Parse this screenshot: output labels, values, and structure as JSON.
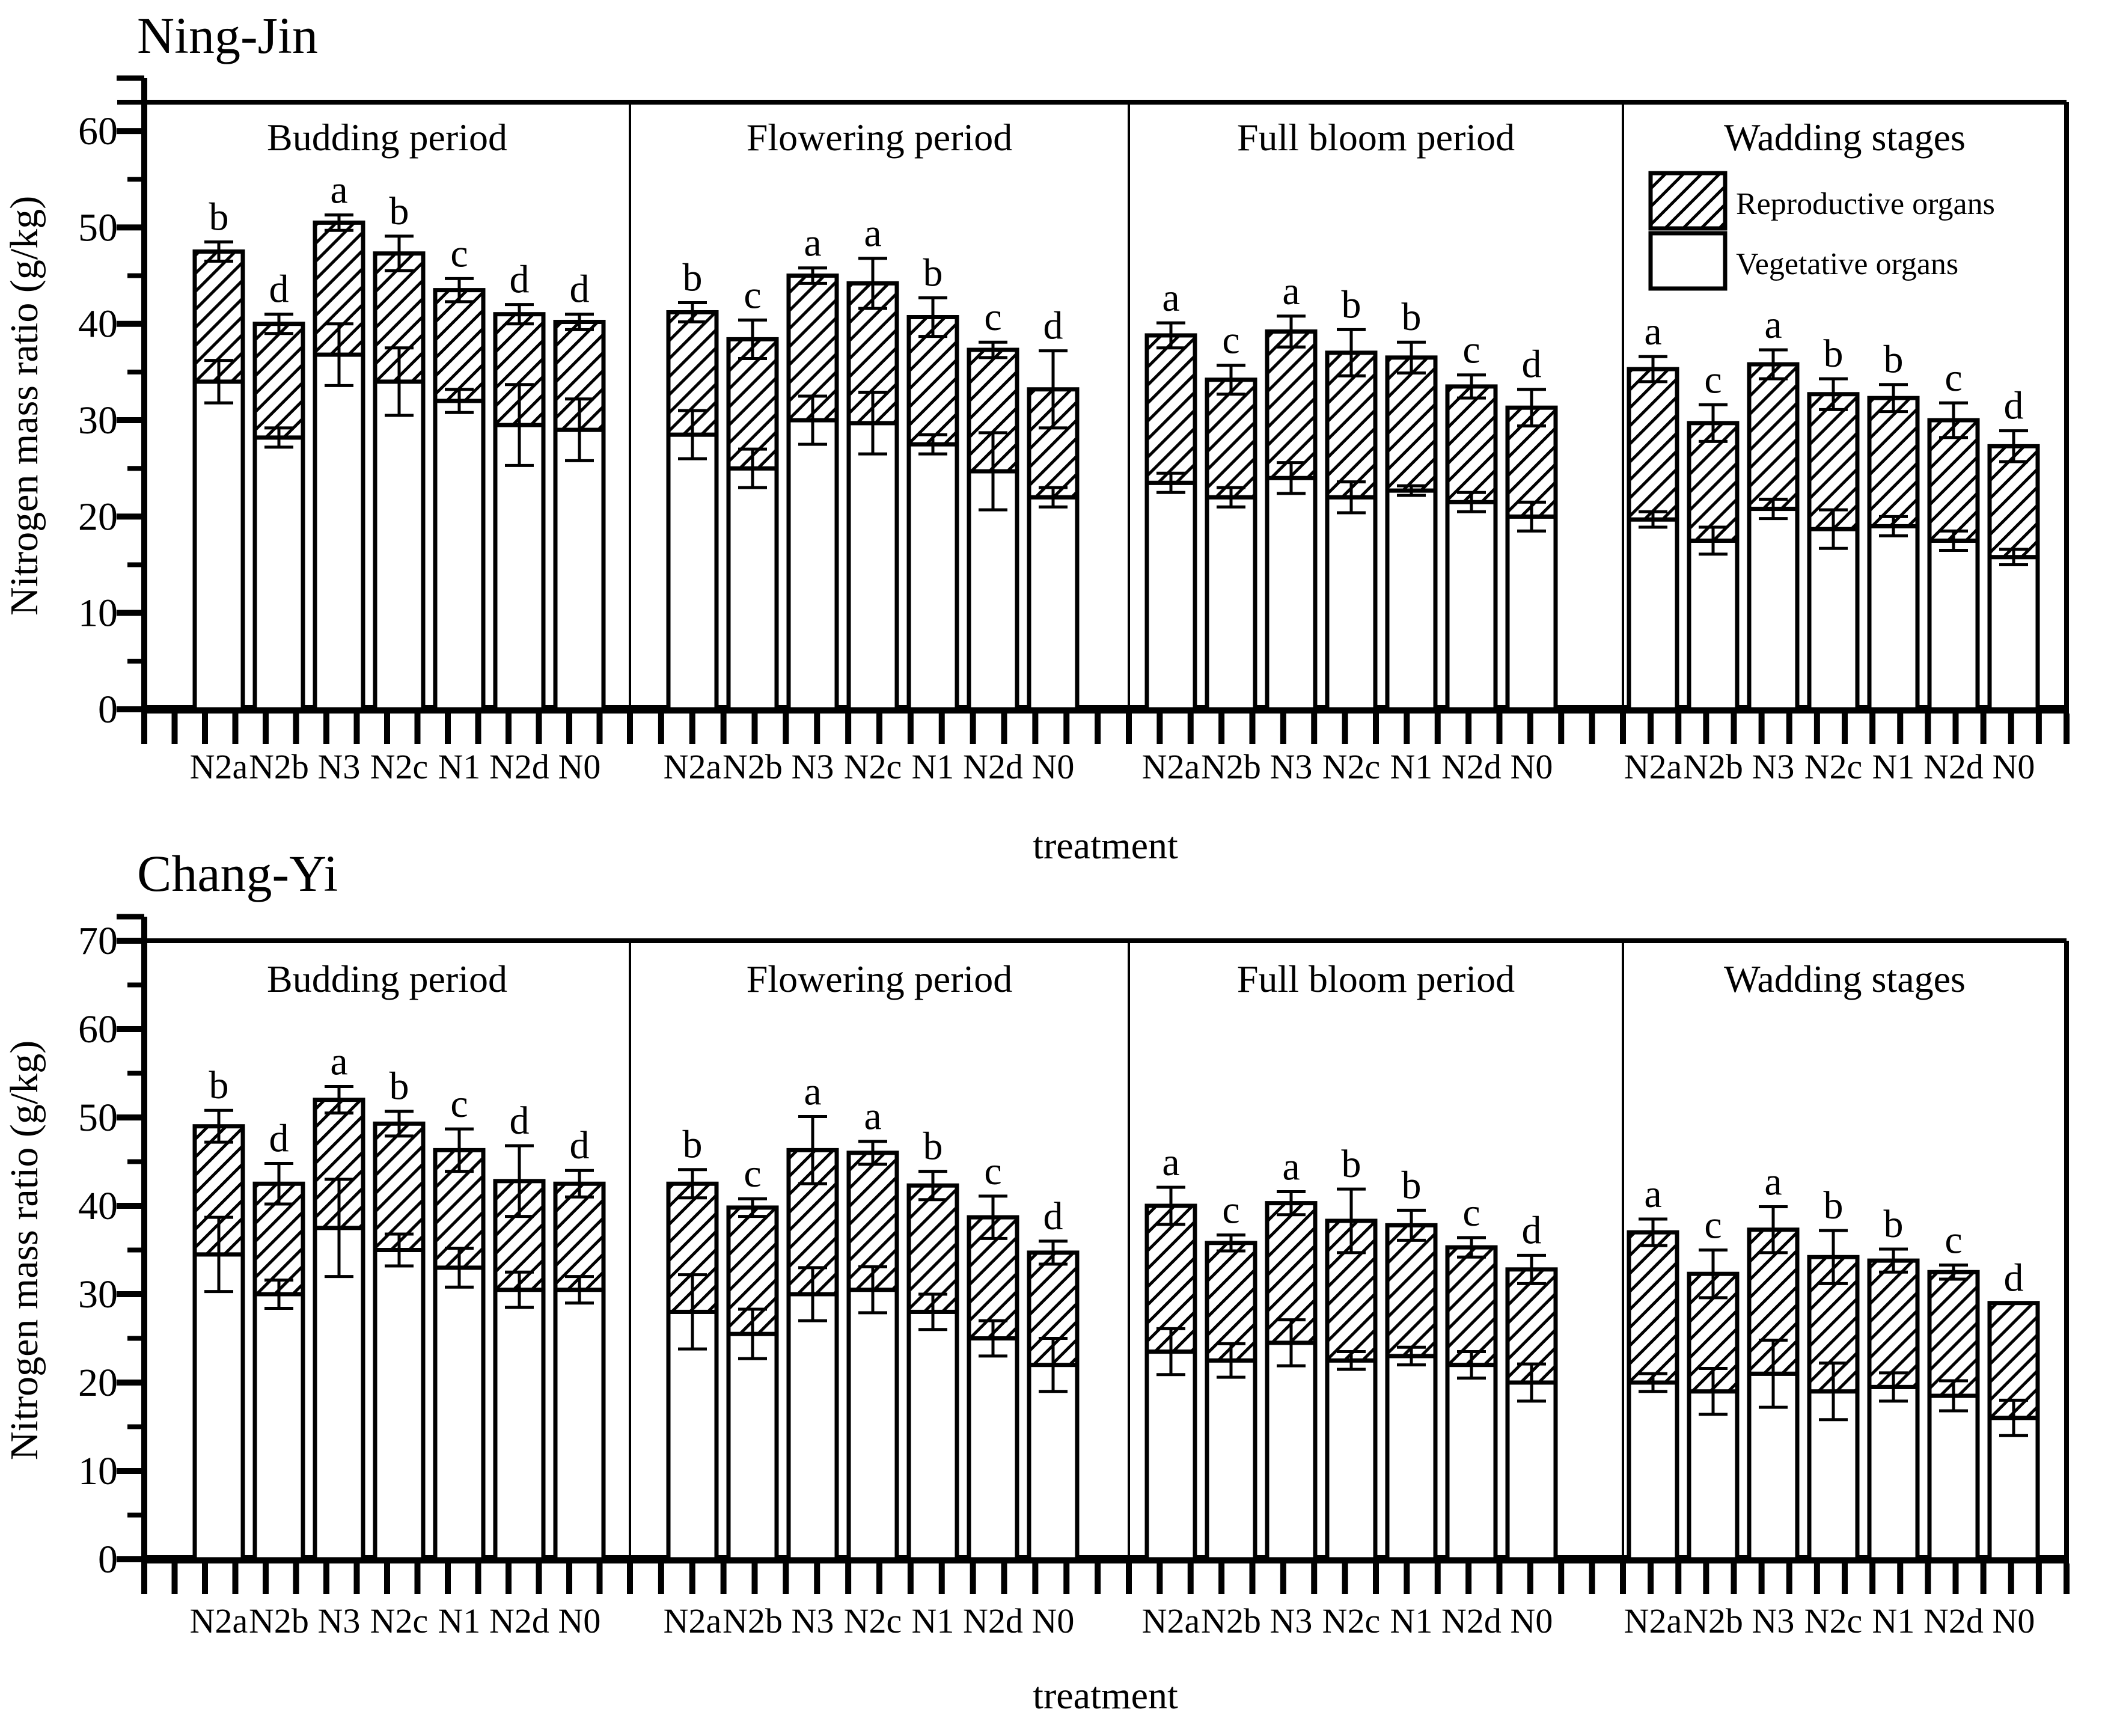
{
  "colors": {
    "ink": "#000000",
    "paper": "#ffffff"
  },
  "legend": {
    "items": [
      {
        "label": "Reproductive organs",
        "swatch": "hatched"
      },
      {
        "label": "Vegetative organs",
        "swatch": "plain"
      }
    ]
  },
  "chart_data": [
    {
      "type": "bar",
      "stacked": true,
      "title": "Ning-Jin",
      "ylabel": "Nitrogen mass ratio (g/kg)",
      "xlabel": "treatment",
      "ylim": [
        0,
        63
      ],
      "yticks": [
        0,
        10,
        20,
        30,
        40,
        50,
        60
      ],
      "minor_step": 5,
      "grid": false,
      "legend_position": "top-right-inside",
      "categories": [
        "N2a",
        "N2b",
        "N3",
        "N2c",
        "N1",
        "N2d",
        "N0"
      ],
      "series_note": "total = Vegetative organs + Reproductive organs; sig = significance letter above bar",
      "groups": [
        {
          "label": "Budding period",
          "bars": [
            {
              "treatment": "N2a",
              "vegetative": 34.0,
              "total": 47.5,
              "err_total": 1.0,
              "err_veg": 2.2,
              "sig": "b"
            },
            {
              "treatment": "N2b",
              "vegetative": 28.2,
              "total": 40.0,
              "err_total": 1.0,
              "err_veg": 1.0,
              "sig": "d"
            },
            {
              "treatment": "N3",
              "vegetative": 36.8,
              "total": 50.5,
              "err_total": 0.8,
              "err_veg": 3.2,
              "sig": "a"
            },
            {
              "treatment": "N2c",
              "vegetative": 34.0,
              "total": 47.3,
              "err_total": 1.8,
              "err_veg": 3.5,
              "sig": "b"
            },
            {
              "treatment": "N1",
              "vegetative": 32.0,
              "total": 43.5,
              "err_total": 1.2,
              "err_veg": 1.2,
              "sig": "c"
            },
            {
              "treatment": "N2d",
              "vegetative": 29.5,
              "total": 41.0,
              "err_total": 1.0,
              "err_veg": 4.2,
              "sig": "d"
            },
            {
              "treatment": "N0",
              "vegetative": 29.0,
              "total": 40.2,
              "err_total": 0.8,
              "err_veg": 3.2,
              "sig": "d"
            }
          ]
        },
        {
          "label": "Flowering period",
          "bars": [
            {
              "treatment": "N2a",
              "vegetative": 28.5,
              "total": 41.2,
              "err_total": 1.0,
              "err_veg": 2.5,
              "sig": "b"
            },
            {
              "treatment": "N2b",
              "vegetative": 25.0,
              "total": 38.4,
              "err_total": 2.0,
              "err_veg": 2.0,
              "sig": "c"
            },
            {
              "treatment": "N3",
              "vegetative": 30.0,
              "total": 45.0,
              "err_total": 0.8,
              "err_veg": 2.5,
              "sig": "a"
            },
            {
              "treatment": "N2c",
              "vegetative": 29.7,
              "total": 44.2,
              "err_total": 2.6,
              "err_veg": 3.2,
              "sig": "a"
            },
            {
              "treatment": "N1",
              "vegetative": 27.5,
              "total": 40.7,
              "err_total": 2.0,
              "err_veg": 1.0,
              "sig": "b"
            },
            {
              "treatment": "N2d",
              "vegetative": 24.7,
              "total": 37.3,
              "err_total": 0.8,
              "err_veg": 4.0,
              "sig": "c"
            },
            {
              "treatment": "N0",
              "vegetative": 22.0,
              "total": 33.2,
              "err_total": 4.0,
              "err_veg": 1.0,
              "sig": "d"
            }
          ]
        },
        {
          "label": "Full bloom period",
          "bars": [
            {
              "treatment": "N2a",
              "vegetative": 23.5,
              "total": 38.8,
              "err_total": 1.3,
              "err_veg": 1.0,
              "sig": "a"
            },
            {
              "treatment": "N2b",
              "vegetative": 22.0,
              "total": 34.2,
              "err_total": 1.5,
              "err_veg": 1.0,
              "sig": "c"
            },
            {
              "treatment": "N3",
              "vegetative": 24.0,
              "total": 39.2,
              "err_total": 1.6,
              "err_veg": 1.6,
              "sig": "a"
            },
            {
              "treatment": "N2c",
              "vegetative": 22.0,
              "total": 37.0,
              "err_total": 2.4,
              "err_veg": 1.6,
              "sig": "b"
            },
            {
              "treatment": "N1",
              "vegetative": 22.7,
              "total": 36.5,
              "err_total": 1.6,
              "err_veg": 0.5,
              "sig": "b"
            },
            {
              "treatment": "N2d",
              "vegetative": 21.5,
              "total": 33.5,
              "err_total": 1.2,
              "err_veg": 1.0,
              "sig": "c"
            },
            {
              "treatment": "N0",
              "vegetative": 20.0,
              "total": 31.3,
              "err_total": 1.9,
              "err_veg": 1.5,
              "sig": "d"
            }
          ]
        },
        {
          "label": "Wadding stages",
          "bars": [
            {
              "treatment": "N2a",
              "vegetative": 19.7,
              "total": 35.3,
              "err_total": 1.3,
              "err_veg": 0.8,
              "sig": "a"
            },
            {
              "treatment": "N2b",
              "vegetative": 17.5,
              "total": 29.7,
              "err_total": 1.9,
              "err_veg": 1.4,
              "sig": "c"
            },
            {
              "treatment": "N3",
              "vegetative": 20.8,
              "total": 35.8,
              "err_total": 1.5,
              "err_veg": 1.0,
              "sig": "a"
            },
            {
              "treatment": "N2c",
              "vegetative": 18.7,
              "total": 32.7,
              "err_total": 1.6,
              "err_veg": 2.0,
              "sig": "b"
            },
            {
              "treatment": "N1",
              "vegetative": 19.0,
              "total": 32.3,
              "err_total": 1.4,
              "err_veg": 1.0,
              "sig": "b"
            },
            {
              "treatment": "N2d",
              "vegetative": 17.5,
              "total": 30.0,
              "err_total": 1.8,
              "err_veg": 1.0,
              "sig": "c"
            },
            {
              "treatment": "N0",
              "vegetative": 15.8,
              "total": 27.3,
              "err_total": 1.6,
              "err_veg": 0.8,
              "sig": "d"
            }
          ]
        }
      ]
    },
    {
      "type": "bar",
      "stacked": true,
      "title": "Chang-Yi",
      "ylabel": "Nitrogen mass ratio (g/kg)",
      "xlabel": "treatment",
      "ylim": [
        0,
        70
      ],
      "yticks": [
        0,
        10,
        20,
        30,
        40,
        50,
        60,
        70
      ],
      "minor_step": 5,
      "grid": false,
      "legend_position": "none",
      "categories": [
        "N2a",
        "N2b",
        "N3",
        "N2c",
        "N1",
        "N2d",
        "N0"
      ],
      "groups": [
        {
          "label": "Budding period",
          "bars": [
            {
              "treatment": "N2a",
              "vegetative": 34.5,
              "total": 49.0,
              "err_total": 1.8,
              "err_veg": 4.2,
              "sig": "b"
            },
            {
              "treatment": "N2b",
              "vegetative": 30.0,
              "total": 42.5,
              "err_total": 2.3,
              "err_veg": 1.6,
              "sig": "d"
            },
            {
              "treatment": "N3",
              "vegetative": 37.5,
              "total": 52.0,
              "err_total": 1.5,
              "err_veg": 5.5,
              "sig": "a"
            },
            {
              "treatment": "N2c",
              "vegetative": 35.0,
              "total": 49.3,
              "err_total": 1.4,
              "err_veg": 1.8,
              "sig": "b"
            },
            {
              "treatment": "N1",
              "vegetative": 33.0,
              "total": 46.3,
              "err_total": 2.4,
              "err_veg": 2.2,
              "sig": "c"
            },
            {
              "treatment": "N2d",
              "vegetative": 30.5,
              "total": 42.8,
              "err_total": 4.0,
              "err_veg": 2.0,
              "sig": "d"
            },
            {
              "treatment": "N0",
              "vegetative": 30.5,
              "total": 42.5,
              "err_total": 1.5,
              "err_veg": 1.5,
              "sig": "d"
            }
          ]
        },
        {
          "label": "Flowering period",
          "bars": [
            {
              "treatment": "N2a",
              "vegetative": 28.0,
              "total": 42.5,
              "err_total": 1.6,
              "err_veg": 4.2,
              "sig": "b"
            },
            {
              "treatment": "N2b",
              "vegetative": 25.5,
              "total": 39.8,
              "err_total": 1.0,
              "err_veg": 2.8,
              "sig": "c"
            },
            {
              "treatment": "N3",
              "vegetative": 30.0,
              "total": 46.3,
              "err_total": 3.8,
              "err_veg": 3.0,
              "sig": "a"
            },
            {
              "treatment": "N2c",
              "vegetative": 30.5,
              "total": 46.0,
              "err_total": 1.3,
              "err_veg": 2.6,
              "sig": "a"
            },
            {
              "treatment": "N1",
              "vegetative": 28.0,
              "total": 42.3,
              "err_total": 1.6,
              "err_veg": 2.0,
              "sig": "b"
            },
            {
              "treatment": "N2d",
              "vegetative": 25.0,
              "total": 38.7,
              "err_total": 2.4,
              "err_veg": 2.0,
              "sig": "c"
            },
            {
              "treatment": "N0",
              "vegetative": 22.0,
              "total": 34.7,
              "err_total": 1.3,
              "err_veg": 3.0,
              "sig": "d"
            }
          ]
        },
        {
          "label": "Full bloom period",
          "bars": [
            {
              "treatment": "N2a",
              "vegetative": 23.5,
              "total": 40.0,
              "err_total": 2.1,
              "err_veg": 2.6,
              "sig": "a"
            },
            {
              "treatment": "N2b",
              "vegetative": 22.5,
              "total": 35.8,
              "err_total": 0.9,
              "err_veg": 1.9,
              "sig": "c"
            },
            {
              "treatment": "N3",
              "vegetative": 24.5,
              "total": 40.3,
              "err_total": 1.3,
              "err_veg": 2.6,
              "sig": "a"
            },
            {
              "treatment": "N2c",
              "vegetative": 22.5,
              "total": 38.3,
              "err_total": 3.6,
              "err_veg": 1.0,
              "sig": "b"
            },
            {
              "treatment": "N1",
              "vegetative": 23.0,
              "total": 37.8,
              "err_total": 1.7,
              "err_veg": 1.0,
              "sig": "b"
            },
            {
              "treatment": "N2d",
              "vegetative": 22.0,
              "total": 35.3,
              "err_total": 1.1,
              "err_veg": 1.5,
              "sig": "c"
            },
            {
              "treatment": "N0",
              "vegetative": 20.0,
              "total": 32.8,
              "err_total": 1.6,
              "err_veg": 2.1,
              "sig": "d"
            }
          ]
        },
        {
          "label": "Wadding stages",
          "bars": [
            {
              "treatment": "N2a",
              "vegetative": 20.0,
              "total": 37.0,
              "err_total": 1.5,
              "err_veg": 1.0,
              "sig": "a"
            },
            {
              "treatment": "N2b",
              "vegetative": 19.0,
              "total": 32.3,
              "err_total": 2.7,
              "err_veg": 2.6,
              "sig": "c"
            },
            {
              "treatment": "N3",
              "vegetative": 21.0,
              "total": 37.3,
              "err_total": 2.6,
              "err_veg": 3.8,
              "sig": "a"
            },
            {
              "treatment": "N2c",
              "vegetative": 19.0,
              "total": 34.2,
              "err_total": 3.0,
              "err_veg": 3.2,
              "sig": "b"
            },
            {
              "treatment": "N1",
              "vegetative": 19.5,
              "total": 33.8,
              "err_total": 1.3,
              "err_veg": 1.6,
              "sig": "b"
            },
            {
              "treatment": "N2d",
              "vegetative": 18.5,
              "total": 32.5,
              "err_total": 0.8,
              "err_veg": 1.7,
              "sig": "c"
            },
            {
              "treatment": "N0",
              "vegetative": 16.0,
              "total": 29.0,
              "err_total": 0.0,
              "err_veg": 2.0,
              "sig": "d"
            }
          ]
        }
      ]
    }
  ]
}
